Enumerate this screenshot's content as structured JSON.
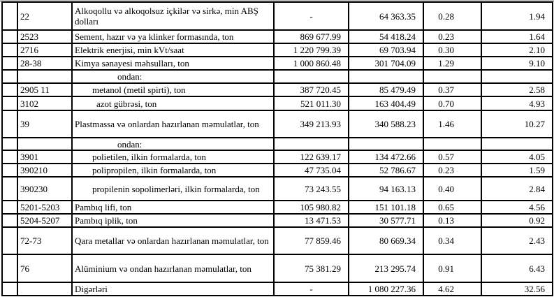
{
  "rows": [
    {
      "code": "22",
      "name": "Alkoqollu və alkoqolsuz içkilər və sirkə, min ABŞ dolları",
      "qty": "-",
      "value": "64 363.35",
      "share_total": "0.28",
      "share_group": "1.94",
      "indent": 0,
      "h": 40
    },
    {
      "code": "2523",
      "name": "Sement, hazır və ya klinker formasında, ton",
      "qty": "869 677.99",
      "value": "54 418.24",
      "share_total": "0.23",
      "share_group": "1.64",
      "indent": 0,
      "h": 19
    },
    {
      "code": "2716",
      "name": "Elektrik enerjisi, min kVt/saat",
      "qty": "1 220 799.39",
      "value": "69 703.94",
      "share_total": "0.30",
      "share_group": "2.10",
      "indent": 0,
      "h": 19
    },
    {
      "code": "28-38",
      "name": "Kimya sənayesi məhsulları, ton",
      "qty": "1 000 860.48",
      "value": "301 704.09",
      "share_total": "1.29",
      "share_group": "9.10",
      "indent": 0,
      "h": 19
    },
    {
      "code": "",
      "name": "ondan:",
      "qty": "",
      "value": "",
      "share_total": "",
      "share_group": "",
      "indent": 3,
      "h": 19
    },
    {
      "code": "2905 11",
      "name": "metanol (metil spirti), ton",
      "qty": "387 720.45",
      "value": "85 479.49",
      "share_total": "0.37",
      "share_group": "2.58",
      "indent": 1,
      "h": 19
    },
    {
      "code": "3102",
      "name": "azot gübrəsi, ton",
      "qty": "521 011.30",
      "value": "163 404.49",
      "share_total": "0.70",
      "share_group": "4.93",
      "indent": 2,
      "h": 20
    },
    {
      "code": "39",
      "name": "Plastmassa və onlardan hazırlanan məmulatlar, ton",
      "qty": "349 213.93",
      "value": "340 588.23",
      "share_total": "1.46",
      "share_group": "10.27",
      "indent": 0,
      "h": 39
    },
    {
      "code": "",
      "name": "ondan:",
      "qty": "",
      "value": "",
      "share_total": "",
      "share_group": "",
      "indent": 3,
      "h": 18
    },
    {
      "code": "3901",
      "name": "polietilen, ilkin formalarda, ton",
      "qty": "122 639.17",
      "value": "134 472.66",
      "share_total": "0.57",
      "share_group": "4.05",
      "indent": 1,
      "h": 19
    },
    {
      "code": "390210",
      "name": "polipropilen, ilkin formalarda, ton",
      "qty": "47 735.04",
      "value": "52 786.67",
      "share_total": "0.23",
      "share_group": "1.59",
      "indent": 1,
      "h": 19
    },
    {
      "code": "390230",
      "name": "propilenin sopolimerləri, ilkin formalarda, ton",
      "qty": "73 243.55",
      "value": "94 163.13",
      "share_total": "0.40",
      "share_group": "2.84",
      "indent": 1,
      "h": 34
    },
    {
      "code": "5201-5203",
      "name": "Pambıq lifi, ton",
      "qty": "105 980.82",
      "value": "151 101.18",
      "share_total": "0.65",
      "share_group": "4.56",
      "indent": 0,
      "h": 19
    },
    {
      "code": "5204-5207",
      "name": "Pambıq iplik, ton",
      "qty": "13 471.53",
      "value": "30 577.71",
      "share_total": "0.13",
      "share_group": "0.92",
      "indent": 0,
      "h": 19
    },
    {
      "code": "72-73",
      "name": "Qara metallar və onlardan hazırlanan məmulatlar, ton",
      "qty": "77 859.46",
      "value": "80 669.34",
      "share_total": "0.34",
      "share_group": "2.43",
      "indent": 0,
      "h": 39
    },
    {
      "code": "76",
      "name": "Alüminium və ondan hazırlanan məmulatlar, ton",
      "qty": "75 381.29",
      "value": "213 295.74",
      "share_total": "0.91",
      "share_group": "6.43",
      "indent": 0,
      "h": 40
    },
    {
      "code": "",
      "name": "Digərləri",
      "qty": "-",
      "value": "1 080 227.36",
      "share_total": "4.62",
      "share_group": "32.56",
      "indent": 0,
      "h": 19
    }
  ]
}
